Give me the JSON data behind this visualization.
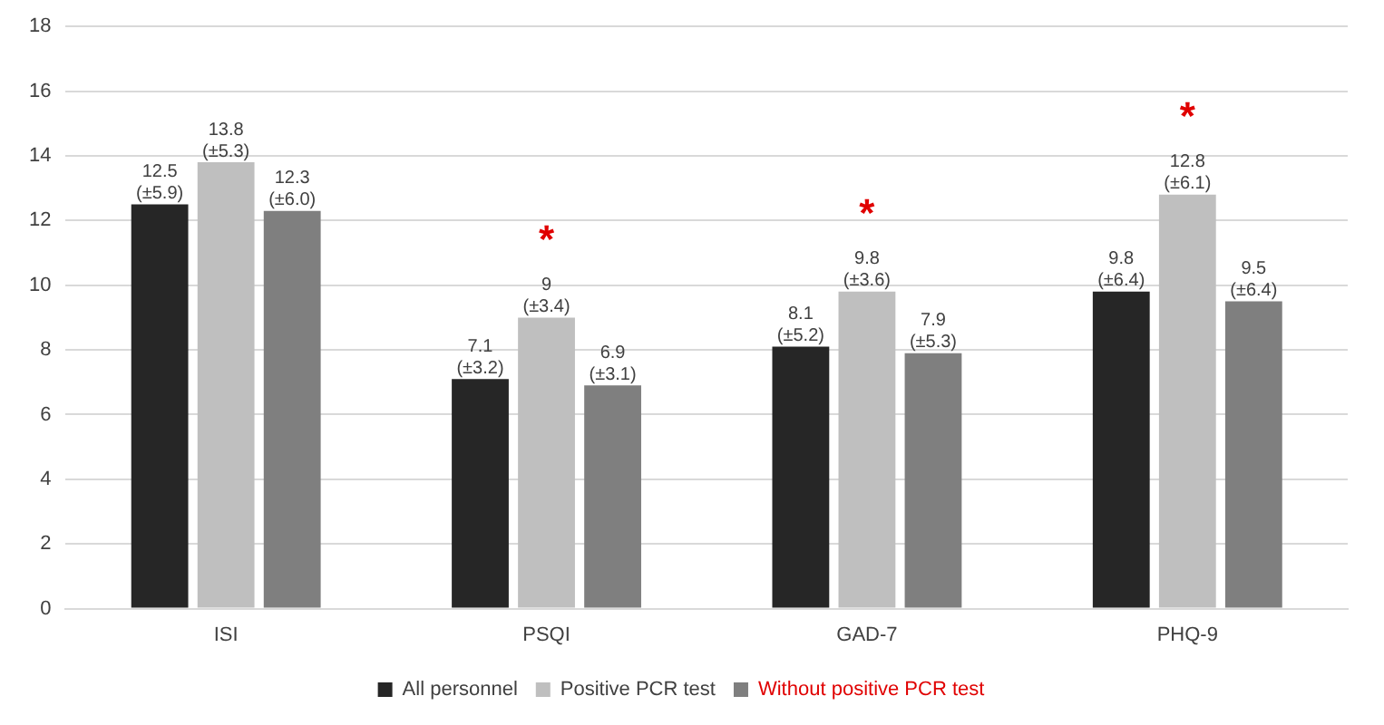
{
  "chart_data": {
    "type": "bar",
    "categories": [
      "ISI",
      "PSQI",
      "GAD-7",
      "PHQ-9"
    ],
    "series": [
      {
        "name": "All personnel",
        "color": "#262626",
        "values": [
          12.5,
          7.1,
          8.1,
          9.8
        ],
        "value_labels": [
          "12.5\n(±5.9)",
          "7.1\n(±3.2)",
          "8.1\n(±5.2)",
          "9.8\n(±6.4)"
        ]
      },
      {
        "name": "Positive PCR test",
        "color": "#bfbfbf",
        "values": [
          13.8,
          9,
          9.8,
          12.8
        ],
        "value_labels": [
          "13.8\n(±5.3)",
          "9\n(±3.4)",
          "9.8\n(±3.6)",
          "12.8\n(±6.1)"
        ]
      },
      {
        "name": "Without positive PCR test",
        "color": "#7f7f7f",
        "values": [
          12.3,
          6.9,
          7.9,
          9.5
        ],
        "value_labels": [
          "12.3\n(±6.0)",
          "6.9\n(±3.1)",
          "7.9\n(±5.3)",
          "9.5\n(±6.4)"
        ]
      }
    ],
    "ylim": [
      0,
      18
    ],
    "yticks": [
      0,
      2,
      4,
      6,
      8,
      10,
      12,
      14,
      16,
      18
    ],
    "grid": "y",
    "legend": "bottom",
    "annotations": [
      "*",
      "*",
      "*"
    ]
  }
}
